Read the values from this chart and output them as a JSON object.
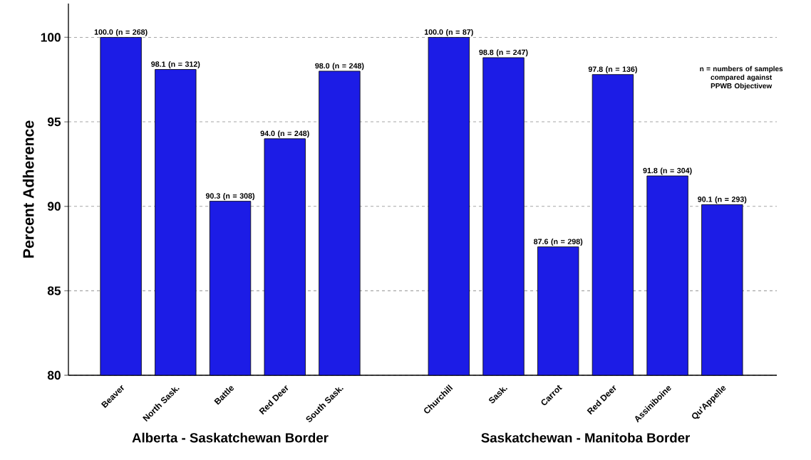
{
  "chart_data": {
    "type": "bar",
    "ylabel": "Percent Adherence",
    "categories": [
      "Beaver",
      "North Sask.",
      "Battle",
      "Red Deer",
      "South Sask.",
      null,
      "Churchill",
      "Sask.",
      "Carrot",
      "Red Deer",
      "Assiniboine",
      "Qu'Appelle"
    ],
    "values": [
      100.0,
      98.1,
      90.3,
      94.0,
      98.0,
      null,
      100.0,
      98.8,
      87.6,
      97.8,
      91.8,
      90.1
    ],
    "value_labels": [
      "100.0 (n = 268)",
      "98.1 (n = 312)",
      "90.3 (n = 308)",
      "94.0 (n = 248)",
      "98.0 (n = 248)",
      null,
      "100.0 (n = 87)",
      "98.8 (n = 247)",
      "87.6 (n = 298)",
      "97.8 (n = 136)",
      "91.8 (n = 304)",
      "90.1 (n = 293)"
    ],
    "color": "#1c1ce6",
    "ylim": [
      80,
      102
    ],
    "yticks": [
      80,
      85,
      90,
      95,
      100
    ],
    "grid": "y",
    "annotations": [
      "Alberta - Saskatchewan Border",
      "Saskatchewan - Manitoba Border",
      "n = numbers of samples compared against PPWB Objectivew"
    ]
  }
}
